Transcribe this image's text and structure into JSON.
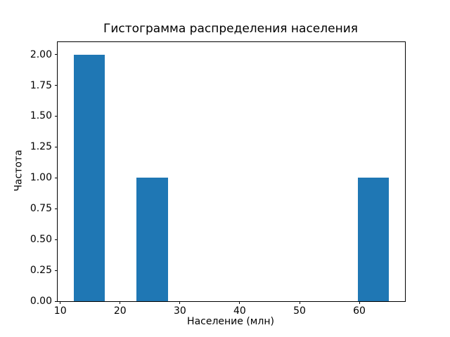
{
  "figure": {
    "background": "#ffffff",
    "text_color": "#000000"
  },
  "chart_data": {
    "type": "bar",
    "subtype": "histogram",
    "title": "Гистограмма распределения населения",
    "xlabel": "Население (млн)",
    "ylabel": "Частота",
    "bar_color": "#1f77b4",
    "axis_color": "#000000",
    "grid": false,
    "legend": "none",
    "xlim": [
      9.56,
      67.64
    ],
    "ylim": [
      0,
      2.1
    ],
    "xticks": [
      10,
      20,
      30,
      40,
      50,
      60
    ],
    "ytick_labels": [
      "0.00",
      "0.25",
      "0.50",
      "0.75",
      "1.00",
      "1.25",
      "1.50",
      "1.75",
      "2.00"
    ],
    "ytick_values": [
      0,
      0.25,
      0.5,
      0.75,
      1.0,
      1.25,
      1.5,
      1.75,
      2.0
    ],
    "bins": [
      {
        "x0": 12.2,
        "x1": 17.48,
        "count": 2
      },
      {
        "x0": 22.76,
        "x1": 28.04,
        "count": 1
      },
      {
        "x0": 59.72,
        "x1": 65.0,
        "count": 1
      }
    ]
  }
}
